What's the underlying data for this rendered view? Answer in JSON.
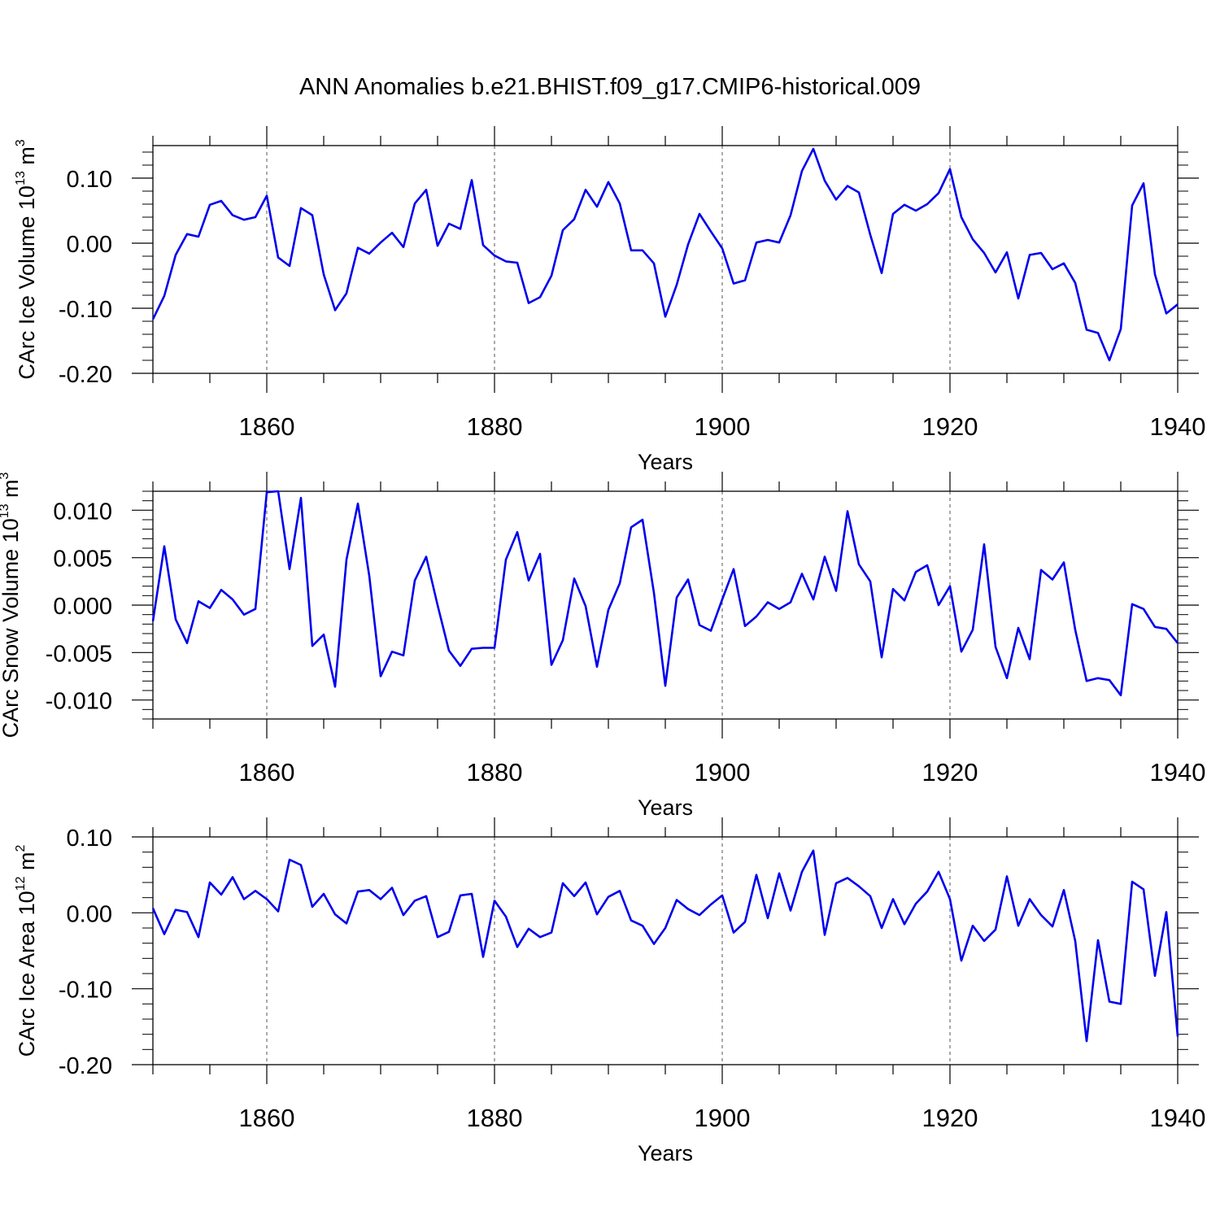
{
  "title": "ANN Anomalies b.e21.BHIST.f09_g17.CMIP6-historical.009",
  "colors": {
    "line": "#0000ee",
    "axis": "#000000",
    "grid": "#555555"
  },
  "chart_data": [
    {
      "type": "line",
      "series_name": "CArc Ice Volume",
      "ylabel": {
        "text": "CArc Ice Volume 10",
        "exp": "13",
        "unit": " m",
        "unit_exp": "3"
      },
      "xlabel": "Years",
      "xlim": [
        1850,
        1940
      ],
      "ylim": [
        -0.2,
        0.15
      ],
      "yticks": [
        0.1,
        0.0,
        -0.1,
        -0.2
      ],
      "ytick_labels": [
        "0.10",
        "0.00",
        "-0.10",
        "-0.20"
      ],
      "xticks": [
        1860,
        1880,
        1900,
        1920,
        1940
      ],
      "xtick_labels": [
        "1860",
        "1880",
        "1900",
        "1920",
        "1940"
      ],
      "grid_x": [
        1860,
        1880,
        1900,
        1920
      ],
      "x_start": 1850,
      "values": [
        -0.117,
        -0.081,
        -0.018,
        0.014,
        0.01,
        0.059,
        0.065,
        0.043,
        0.036,
        0.04,
        0.073,
        -0.022,
        -0.035,
        0.054,
        0.043,
        -0.048,
        -0.103,
        -0.077,
        -0.007,
        -0.016,
        0.001,
        0.016,
        -0.006,
        0.061,
        0.082,
        -0.004,
        0.03,
        0.022,
        0.097,
        -0.003,
        -0.019,
        -0.028,
        -0.03,
        -0.092,
        -0.083,
        -0.05,
        0.02,
        0.037,
        0.082,
        0.056,
        0.094,
        0.061,
        -0.011,
        -0.011,
        -0.031,
        -0.113,
        -0.064,
        -0.002,
        0.045,
        0.018,
        -0.008,
        -0.062,
        -0.057,
        0.001,
        0.005,
        0.001,
        0.043,
        0.111,
        0.145,
        0.096,
        0.067,
        0.088,
        0.078,
        0.013,
        -0.046,
        0.045,
        0.059,
        0.05,
        0.06,
        0.077,
        0.114,
        0.04,
        0.006,
        -0.015,
        -0.045,
        -0.014,
        -0.085,
        -0.018,
        -0.015,
        -0.04,
        -0.031,
        -0.061,
        -0.133,
        -0.138,
        -0.18,
        -0.132,
        0.058,
        0.092,
        -0.048,
        -0.108,
        -0.094
      ]
    },
    {
      "type": "line",
      "series_name": "CArc Snow Volume",
      "ylabel": {
        "text": "CArc Snow Volume 10",
        "exp": "13",
        "unit": " m",
        "unit_exp": "3"
      },
      "xlabel": "Years",
      "xlim": [
        1850,
        1940
      ],
      "ylim": [
        -0.012,
        0.012
      ],
      "yticks": [
        0.01,
        0.005,
        0.0,
        -0.005,
        -0.01
      ],
      "ytick_labels": [
        "0.010",
        "0.005",
        "0.000",
        "-0.005",
        "-0.010"
      ],
      "xticks": [
        1860,
        1880,
        1900,
        1920,
        1940
      ],
      "xtick_labels": [
        "1860",
        "1880",
        "1900",
        "1920",
        "1940"
      ],
      "grid_x": [
        1860,
        1880,
        1900,
        1920
      ],
      "x_start": 1850,
      "values": [
        -0.0017,
        0.0062,
        -0.0015,
        -0.004,
        0.0004,
        -0.0003,
        0.0016,
        0.0006,
        -0.001,
        -0.0004,
        0.0119,
        0.012,
        0.0038,
        0.0113,
        -0.0043,
        -0.0031,
        -0.0086,
        0.0048,
        0.0107,
        0.0031,
        -0.0075,
        -0.0049,
        -0.0053,
        0.0026,
        0.0051,
        0.0,
        -0.0048,
        -0.0064,
        -0.0046,
        -0.0045,
        -0.0045,
        0.0048,
        0.0077,
        0.0026,
        0.0054,
        -0.0063,
        -0.0037,
        0.0028,
        -0.0001,
        -0.0065,
        -0.0005,
        0.0023,
        0.0082,
        0.009,
        0.0013,
        -0.0085,
        0.0008,
        0.0027,
        -0.0021,
        -0.0027,
        0.0006,
        0.0038,
        -0.0022,
        -0.0012,
        0.0003,
        -0.0004,
        0.0003,
        0.0033,
        0.0006,
        0.0051,
        0.0015,
        0.0099,
        0.0043,
        0.0025,
        -0.0055,
        0.0017,
        0.0005,
        0.0035,
        0.0042,
        0.0,
        0.002,
        -0.0049,
        -0.0026,
        0.0064,
        -0.0044,
        -0.0077,
        -0.0024,
        -0.0057,
        0.0037,
        0.0027,
        0.0045,
        -0.0026,
        -0.008,
        -0.0077,
        -0.0079,
        -0.0095,
        0.0001,
        -0.0004,
        -0.0023,
        -0.0025,
        -0.004
      ]
    },
    {
      "type": "line",
      "series_name": "CArc Ice Area",
      "ylabel": {
        "text": "CArc Ice Area 10",
        "exp": "12",
        "unit": " m",
        "unit_exp": "2"
      },
      "xlabel": "Years",
      "xlim": [
        1850,
        1940
      ],
      "ylim": [
        -0.2,
        0.1
      ],
      "yticks": [
        0.1,
        0.0,
        -0.1,
        -0.2
      ],
      "ytick_labels": [
        "0.10",
        "0.00",
        "-0.10",
        "-0.20"
      ],
      "xticks": [
        1860,
        1880,
        1900,
        1920,
        1940
      ],
      "xtick_labels": [
        "1860",
        "1880",
        "1900",
        "1920",
        "1940"
      ],
      "grid_x": [
        1860,
        1880,
        1900,
        1920
      ],
      "x_start": 1850,
      "values": [
        0.006,
        -0.028,
        0.004,
        0.001,
        -0.032,
        0.04,
        0.024,
        0.047,
        0.018,
        0.029,
        0.018,
        0.002,
        0.07,
        0.063,
        0.008,
        0.025,
        -0.002,
        -0.014,
        0.028,
        0.03,
        0.018,
        0.033,
        -0.003,
        0.016,
        0.022,
        -0.032,
        -0.025,
        0.023,
        0.025,
        -0.058,
        0.016,
        -0.005,
        -0.045,
        -0.021,
        -0.032,
        -0.026,
        0.039,
        0.022,
        0.04,
        -0.002,
        0.021,
        0.029,
        -0.01,
        -0.017,
        -0.041,
        -0.02,
        0.017,
        0.005,
        -0.003,
        0.011,
        0.023,
        -0.026,
        -0.012,
        0.05,
        -0.007,
        0.052,
        0.003,
        0.054,
        0.082,
        -0.029,
        0.039,
        0.046,
        0.035,
        0.022,
        -0.02,
        0.018,
        -0.015,
        0.012,
        0.028,
        0.054,
        0.018,
        -0.063,
        -0.017,
        -0.037,
        -0.022,
        0.048,
        -0.017,
        0.018,
        -0.003,
        -0.018,
        0.03,
        -0.037,
        -0.169,
        -0.036,
        -0.117,
        -0.12,
        0.041,
        0.031,
        -0.083,
        0.001,
        -0.163
      ]
    }
  ]
}
